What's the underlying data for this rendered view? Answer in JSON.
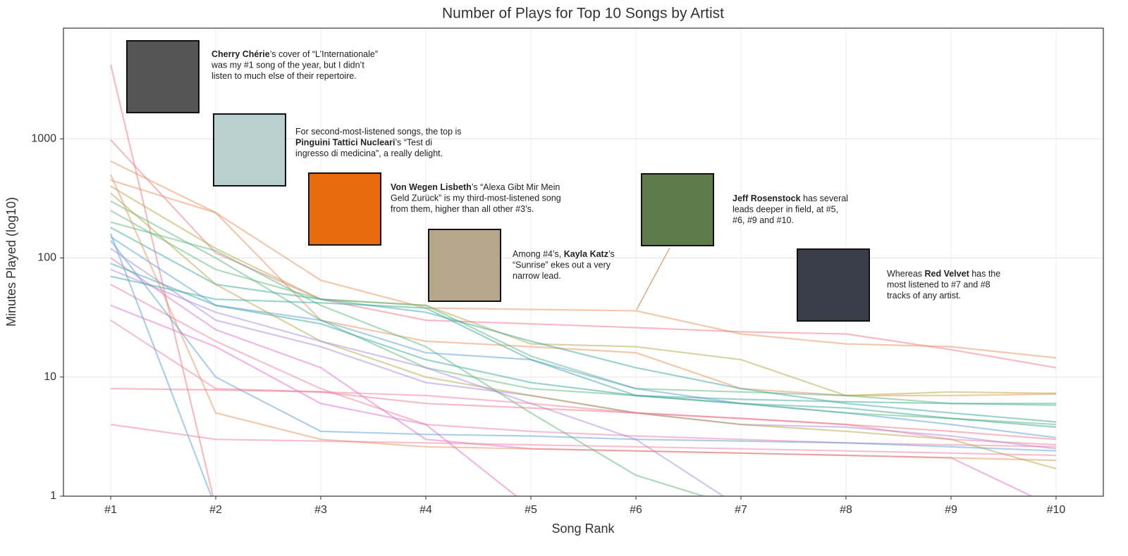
{
  "chart_data": {
    "type": "line",
    "title": "Number of Plays for Top 10 Songs by Artist",
    "x_label": "Song Rank",
    "y_label": "Minutes Played (log10)",
    "categories": [
      "#1",
      "#2",
      "#3",
      "#4",
      "#5",
      "#6",
      "#7",
      "#8",
      "#9",
      "#10"
    ],
    "ylim": [
      1,
      8500
    ],
    "yticks": [
      1,
      10,
      100,
      1000
    ],
    "log_scale": true,
    "grid": true,
    "series": [
      {
        "color": "#f07888",
        "values": [
          4200,
          0.8,
          null,
          null,
          null,
          null,
          null,
          null,
          null,
          null
        ]
      },
      {
        "color": "#f07888",
        "values": [
          980,
          110,
          45,
          30,
          28,
          26,
          24,
          23,
          17,
          12
        ]
      },
      {
        "color": "#e8925a",
        "values": [
          450,
          240,
          65,
          38,
          37,
          36,
          23,
          19,
          18,
          14.5
        ]
      },
      {
        "color": "#e8925a",
        "values": [
          650,
          240,
          30,
          20,
          18,
          16,
          8,
          7,
          7,
          7.2
        ]
      },
      {
        "color": "#b5a84a",
        "values": [
          400,
          120,
          45,
          40,
          19,
          18,
          14,
          7,
          7.5,
          7.3
        ]
      },
      {
        "color": "#5cb87a",
        "values": [
          250,
          80,
          45,
          40,
          15,
          8,
          7.5,
          7,
          6,
          5.8
        ]
      },
      {
        "color": "#3aa8a0",
        "values": [
          180,
          60,
          45,
          35,
          20,
          12,
          8,
          6,
          5,
          4.2
        ]
      },
      {
        "color": "#5aa0d8",
        "values": [
          150,
          40,
          30,
          16,
          14,
          8,
          6,
          5,
          4,
          3.1
        ]
      },
      {
        "color": "#a78be0",
        "values": [
          120,
          30,
          18,
          9,
          7,
          5,
          4,
          3.8,
          3.2,
          2.5
        ]
      },
      {
        "color": "#e070d0",
        "values": [
          100,
          25,
          12,
          3,
          2.5,
          2.4,
          2.3,
          2.2,
          2.1,
          0.8
        ]
      },
      {
        "color": "#5cb87a",
        "values": [
          300,
          100,
          30,
          12,
          8,
          7,
          6,
          5,
          4.5,
          4
        ]
      },
      {
        "color": "#3aa8a0",
        "values": [
          90,
          40,
          28,
          14,
          9,
          7,
          6,
          5.5,
          4.5,
          3.8
        ]
      },
      {
        "color": "#f07fa0",
        "values": [
          60,
          20,
          8,
          4,
          3.5,
          3.2,
          3,
          2.8,
          2.7,
          2.6
        ]
      },
      {
        "color": "#e8925a",
        "values": [
          500,
          5,
          3,
          2.6,
          2.5,
          2.4,
          2.3,
          2.2,
          2.1,
          2
        ]
      },
      {
        "color": "#5aa0d8",
        "values": [
          140,
          10,
          3.5,
          3.3,
          3.2,
          3,
          2.9,
          2.8,
          2.6,
          2.4
        ]
      },
      {
        "color": "#b5a84a",
        "values": [
          350,
          60,
          20,
          10,
          7,
          5,
          4,
          3.5,
          3,
          1.7
        ]
      },
      {
        "color": "#e070d0",
        "values": [
          40,
          18,
          6,
          4,
          0.8,
          null,
          null,
          null,
          null,
          null
        ]
      },
      {
        "color": "#a78be0",
        "values": [
          80,
          35,
          20,
          12,
          6,
          3,
          0.8,
          null,
          null,
          null
        ]
      },
      {
        "color": "#5cb87a",
        "values": [
          200,
          115,
          40,
          18,
          5,
          1.5,
          0.8,
          null,
          null,
          null
        ]
      },
      {
        "color": "#f07fa0",
        "values": [
          30,
          8,
          7.5,
          7,
          6,
          5,
          4.5,
          4,
          3,
          2.7
        ]
      },
      {
        "color": "#f07888",
        "values": [
          8,
          7.8,
          7.5,
          6,
          5.5,
          5,
          4.5,
          4,
          3.5,
          3
        ]
      },
      {
        "color": "#5aa0d8",
        "values": [
          160,
          0.8,
          null,
          null,
          null,
          null,
          null,
          null,
          null,
          null
        ]
      },
      {
        "color": "#f07fa0",
        "values": [
          4,
          3,
          2.9,
          2.8,
          2.7,
          2.6,
          2.5,
          2.4,
          2.3,
          2.2
        ]
      },
      {
        "color": "#3aa8a0",
        "values": [
          70,
          45,
          42,
          38,
          14,
          7,
          6.5,
          6.2,
          6,
          6
        ]
      }
    ],
    "annotations": [
      {
        "lines": [
          [
            {
              "text": "Cherry Chérie",
              "bold": true
            },
            {
              "text": "’s cover of “L’Internationale”"
            }
          ],
          [
            {
              "text": "was my #1 song of the year, but I didn’t"
            }
          ],
          [
            {
              "text": "listen to much else of their repertoire."
            }
          ]
        ]
      },
      {
        "lines": [
          [
            {
              "text": "For second-most-listened songs, the top is"
            }
          ],
          [
            {
              "text": "Pinguini Tattici Nucleari",
              "bold": true
            },
            {
              "text": "’s “Test di"
            }
          ],
          [
            {
              "text": "ingresso di medicina”, a really delight."
            }
          ]
        ]
      },
      {
        "lines": [
          [
            {
              "text": "Von Wegen Lisbeth",
              "bold": true
            },
            {
              "text": "’s “Alexa Gibt Mir Mein"
            }
          ],
          [
            {
              "text": "Geld Zurück” is my third-most-listened song"
            }
          ],
          [
            {
              "text": "from them, higher than all other #3’s."
            }
          ]
        ]
      },
      {
        "lines": [
          [
            {
              "text": "Among #4’s, "
            },
            {
              "text": "Kayla Katz",
              "bold": true
            },
            {
              "text": "’s"
            }
          ],
          [
            {
              "text": "“Sunrise” ekes out a very"
            }
          ],
          [
            {
              "text": "narrow lead."
            }
          ]
        ]
      },
      {
        "lines": [
          [
            {
              "text": "Jeff Rosenstock",
              "bold": true
            },
            {
              "text": " has several"
            }
          ],
          [
            {
              "text": "leads deeper in field, at #5,"
            }
          ],
          [
            {
              "text": "#6, #9 and #10."
            }
          ]
        ]
      },
      {
        "lines": [
          [
            {
              "text": "Whereas "
            },
            {
              "text": "Red Velvet",
              "bold": true
            },
            {
              "text": " has the"
            }
          ],
          [
            {
              "text": "most listened to #7 and #8"
            }
          ],
          [
            {
              "text": "tracks of any artist."
            }
          ]
        ]
      }
    ]
  }
}
